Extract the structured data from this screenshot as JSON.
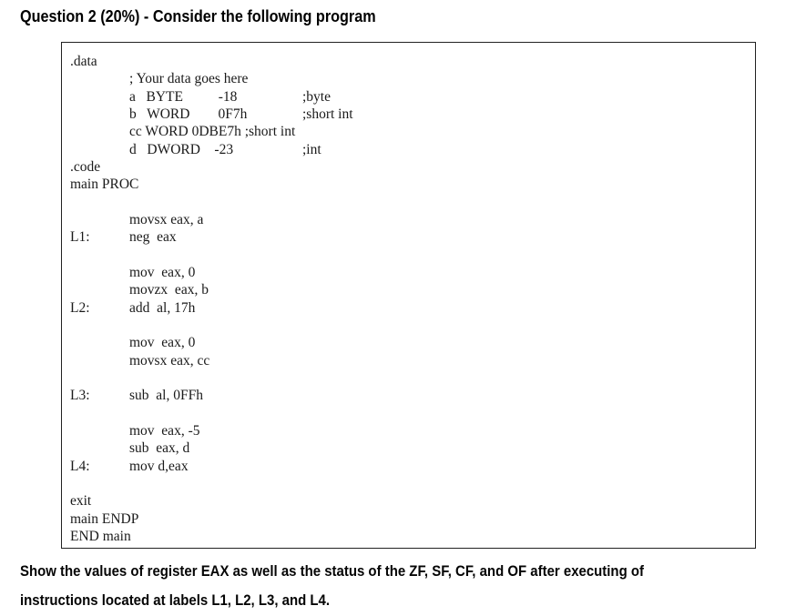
{
  "title": "Question 2 (20%) - Consider the following program",
  "program": {
    "lines": [
      {
        "indent": 0,
        "label": "",
        "text": ".data",
        "comment": ""
      },
      {
        "indent": 1,
        "label": "",
        "text": "; Your data goes here",
        "comment": ""
      },
      {
        "indent": 1,
        "label": "",
        "text": "a   BYTE          -18",
        "comment": ";byte"
      },
      {
        "indent": 1,
        "label": "",
        "text": "b   WORD        0F7h",
        "comment": ";short int"
      },
      {
        "indent": 1,
        "label": "",
        "text": "cc WORD 0DBE7h ;short int",
        "comment": ""
      },
      {
        "indent": 1,
        "label": "",
        "text": "d   DWORD    -23",
        "comment": ";int"
      },
      {
        "indent": 0,
        "label": "",
        "text": ".code",
        "comment": ""
      },
      {
        "indent": 0,
        "label": "",
        "text": "main PROC",
        "comment": ""
      },
      {
        "blank": true
      },
      {
        "indent": 1,
        "label": "",
        "text": "movsx eax, a",
        "comment": ""
      },
      {
        "indent": 1,
        "label": "L1:",
        "text": "neg  eax",
        "comment": ""
      },
      {
        "blank": true
      },
      {
        "indent": 1,
        "label": "",
        "text": "mov  eax, 0",
        "comment": ""
      },
      {
        "indent": 1,
        "label": "",
        "text": "movzx  eax, b",
        "comment": ""
      },
      {
        "indent": 1,
        "label": "L2:",
        "text": "add  al, 17h",
        "comment": ""
      },
      {
        "blank": true
      },
      {
        "indent": 1,
        "label": "",
        "text": "mov  eax, 0",
        "comment": ""
      },
      {
        "indent": 1,
        "label": "",
        "text": "movsx eax, cc",
        "comment": ""
      },
      {
        "blank": true
      },
      {
        "indent": 1,
        "label": "L3:",
        "text": "sub  al, 0FFh",
        "comment": ""
      },
      {
        "blank": true
      },
      {
        "indent": 1,
        "label": "",
        "text": "mov  eax, -5",
        "comment": ""
      },
      {
        "indent": 1,
        "label": "",
        "text": "sub  eax, d",
        "comment": ""
      },
      {
        "indent": 1,
        "label": "L4:",
        "text": "mov d,eax",
        "comment": ""
      },
      {
        "blank": true
      },
      {
        "indent": 0,
        "label": "",
        "text": "exit",
        "comment": ""
      },
      {
        "indent": 0,
        "label": "",
        "text": "main ENDP",
        "comment": ""
      },
      {
        "indent": 0,
        "label": "",
        "text": "END main",
        "comment": ""
      }
    ]
  },
  "prompt": {
    "line1": "Show the values of register EAX as well as the status of the ZF, SF, CF, and OF after executing of",
    "line2": "instructions located at labels L1, L2, L3, and L4."
  }
}
